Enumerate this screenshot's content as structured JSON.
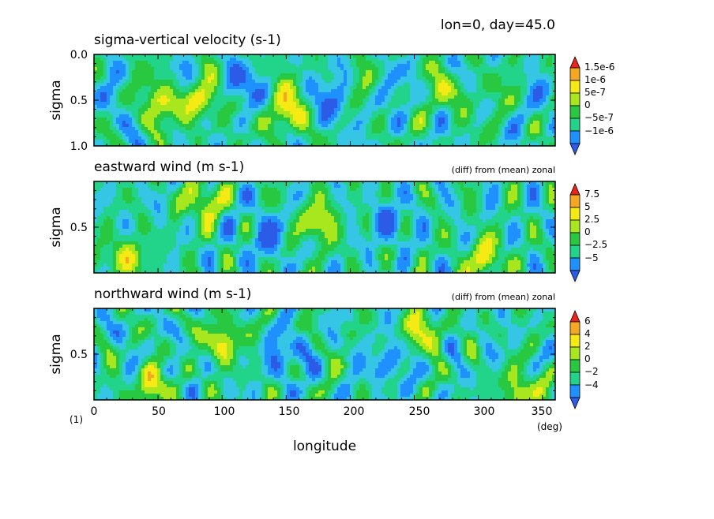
{
  "header": {
    "annotation": "lon=0, day=45.0"
  },
  "xaxis": {
    "label": "longitude",
    "unit": "(deg)",
    "corner_label": "(1)",
    "ticks": [
      "0",
      "50",
      "100",
      "150",
      "200",
      "250",
      "300",
      "350"
    ]
  },
  "panels": [
    {
      "title": "sigma-vertical velocity (s-1)",
      "subtitle": "",
      "ylabel": "sigma",
      "yticks": [
        "0.0",
        "0.5",
        "1.0"
      ],
      "colorbar_labels": [
        "1.5e-6",
        "1e-6",
        "5e-7",
        "0",
        "−5e-7",
        "−1e-6"
      ]
    },
    {
      "title": "eastward wind (m s-1)",
      "subtitle": "(diff) from (mean) zonal",
      "ylabel": "sigma",
      "yticks": [
        "0.5"
      ],
      "colorbar_labels": [
        "7.5",
        "5",
        "2.5",
        "0",
        "−2.5",
        "−5"
      ]
    },
    {
      "title": "northward wind (m s-1)",
      "subtitle": "(diff) from (mean) zonal",
      "ylabel": "sigma",
      "yticks": [
        "0.5"
      ],
      "colorbar_labels": [
        "6",
        "4",
        "2",
        "0",
        "−2",
        "−4"
      ]
    }
  ],
  "colors": {
    "palette": [
      "#2c5be8",
      "#1e90ff",
      "#35c6e6",
      "#22d38a",
      "#28c940",
      "#a8e61e",
      "#f5ea14",
      "#f5a623",
      "#e8241c"
    ]
  },
  "chart_data": [
    {
      "type": "heatmap",
      "title": "sigma-vertical velocity (s-1)",
      "xlabel": "longitude",
      "ylabel": "sigma",
      "xlim": [
        0,
        360
      ],
      "ylim": [
        1.0,
        0.0
      ],
      "levels": [
        -1e-06,
        -5e-07,
        0,
        5e-07,
        1e-06,
        1.5e-06
      ],
      "features": [
        {
          "lon": 55,
          "sigma": 0.55,
          "value": 1.4e-06
        },
        {
          "lon": 80,
          "sigma": 0.5,
          "value": 1.6e-06
        },
        {
          "lon": 150,
          "sigma": 0.65,
          "value": 1.6e-06
        },
        {
          "lon": 285,
          "sigma": 0.42,
          "value": 1.2e-06
        },
        {
          "lon": 190,
          "sigma": 0.55,
          "value": -8e-07
        },
        {
          "lon": 110,
          "sigma": 0.3,
          "value": -9e-07
        }
      ]
    },
    {
      "type": "heatmap",
      "title": "eastward wind (m s-1)",
      "subtitle": "(diff) from (mean) zonal",
      "xlabel": "longitude",
      "ylabel": "sigma",
      "xlim": [
        0,
        360
      ],
      "levels": [
        -5,
        -2.5,
        0,
        2.5,
        5,
        7.5
      ],
      "features": [
        {
          "lon": 85,
          "sigma": 0.22,
          "value": 8.0
        },
        {
          "lon": 175,
          "sigma": 0.45,
          "value": 8.0
        },
        {
          "lon": 305,
          "sigma": 0.85,
          "value": 8.0
        },
        {
          "lon": 25,
          "sigma": 0.85,
          "value": 7.5
        },
        {
          "lon": 135,
          "sigma": 0.6,
          "value": -6.0
        },
        {
          "lon": 230,
          "sigma": 0.45,
          "value": -5.5
        }
      ]
    },
    {
      "type": "heatmap",
      "title": "northward wind (m s-1)",
      "subtitle": "(diff) from (mean) zonal",
      "xlabel": "longitude",
      "ylabel": "sigma",
      "xlim": [
        0,
        360
      ],
      "levels": [
        -4,
        -2,
        0,
        2,
        4,
        6
      ],
      "features": [
        {
          "lon": 100,
          "sigma": 0.35,
          "value": 6.5
        },
        {
          "lon": 45,
          "sigma": 0.85,
          "value": 6.0
        },
        {
          "lon": 255,
          "sigma": 0.25,
          "value": 6.0
        },
        {
          "lon": 335,
          "sigma": 0.9,
          "value": 6.0
        },
        {
          "lon": 150,
          "sigma": 0.5,
          "value": -4.5
        },
        {
          "lon": 230,
          "sigma": 0.6,
          "value": -4.0
        }
      ]
    }
  ]
}
